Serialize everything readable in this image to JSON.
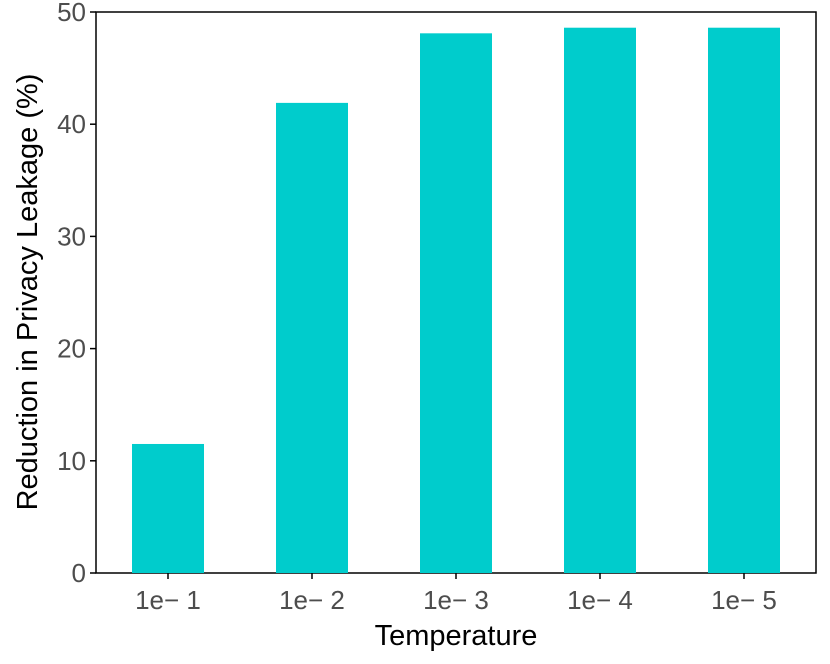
{
  "chart_data": {
    "type": "bar",
    "categories": [
      "1e− 1",
      "1e− 2",
      "1e− 3",
      "1e− 4",
      "1e− 5"
    ],
    "values": [
      11.5,
      41.9,
      48.1,
      48.6,
      48.6
    ],
    "xlabel": "Temperature",
    "ylabel": "Reduction in Privacy Leakage (%)",
    "ylim": [
      0,
      50
    ],
    "yticks": [
      0,
      10,
      20,
      30,
      40,
      50
    ],
    "grid": false,
    "legend": "none",
    "bar_color": "#00CCCC"
  }
}
